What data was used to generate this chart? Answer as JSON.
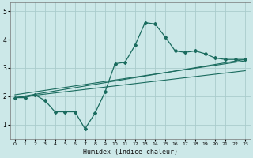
{
  "xlabel": "Humidex (Indice chaleur)",
  "ylabel": "",
  "background_color": "#cce8e8",
  "grid_color": "#aacccc",
  "line_color": "#1a6b5e",
  "xlim": [
    -0.5,
    23.5
  ],
  "ylim": [
    0.5,
    5.3
  ],
  "yticks": [
    1,
    2,
    3,
    4,
    5
  ],
  "xticks": [
    0,
    1,
    2,
    3,
    4,
    5,
    6,
    7,
    8,
    9,
    10,
    11,
    12,
    13,
    14,
    15,
    16,
    17,
    18,
    19,
    20,
    21,
    22,
    23
  ],
  "line1_x": [
    0,
    1,
    2,
    3,
    4,
    5,
    6,
    7,
    8,
    9,
    10,
    11,
    12,
    13,
    14,
    15,
    16,
    17,
    18,
    19,
    20,
    21,
    22,
    23
  ],
  "line1_y": [
    1.95,
    1.95,
    2.05,
    1.85,
    1.45,
    1.45,
    1.45,
    0.85,
    1.4,
    2.15,
    3.15,
    3.2,
    3.8,
    4.6,
    4.55,
    4.1,
    3.6,
    3.55,
    3.6,
    3.5,
    3.35,
    3.3,
    3.3,
    3.3
  ],
  "line2_x": [
    0,
    23
  ],
  "line2_y": [
    1.95,
    3.3
  ],
  "line3_x": [
    0,
    23
  ],
  "line3_y": [
    1.95,
    2.9
  ],
  "line4_x": [
    0,
    23
  ],
  "line4_y": [
    2.05,
    3.25
  ]
}
